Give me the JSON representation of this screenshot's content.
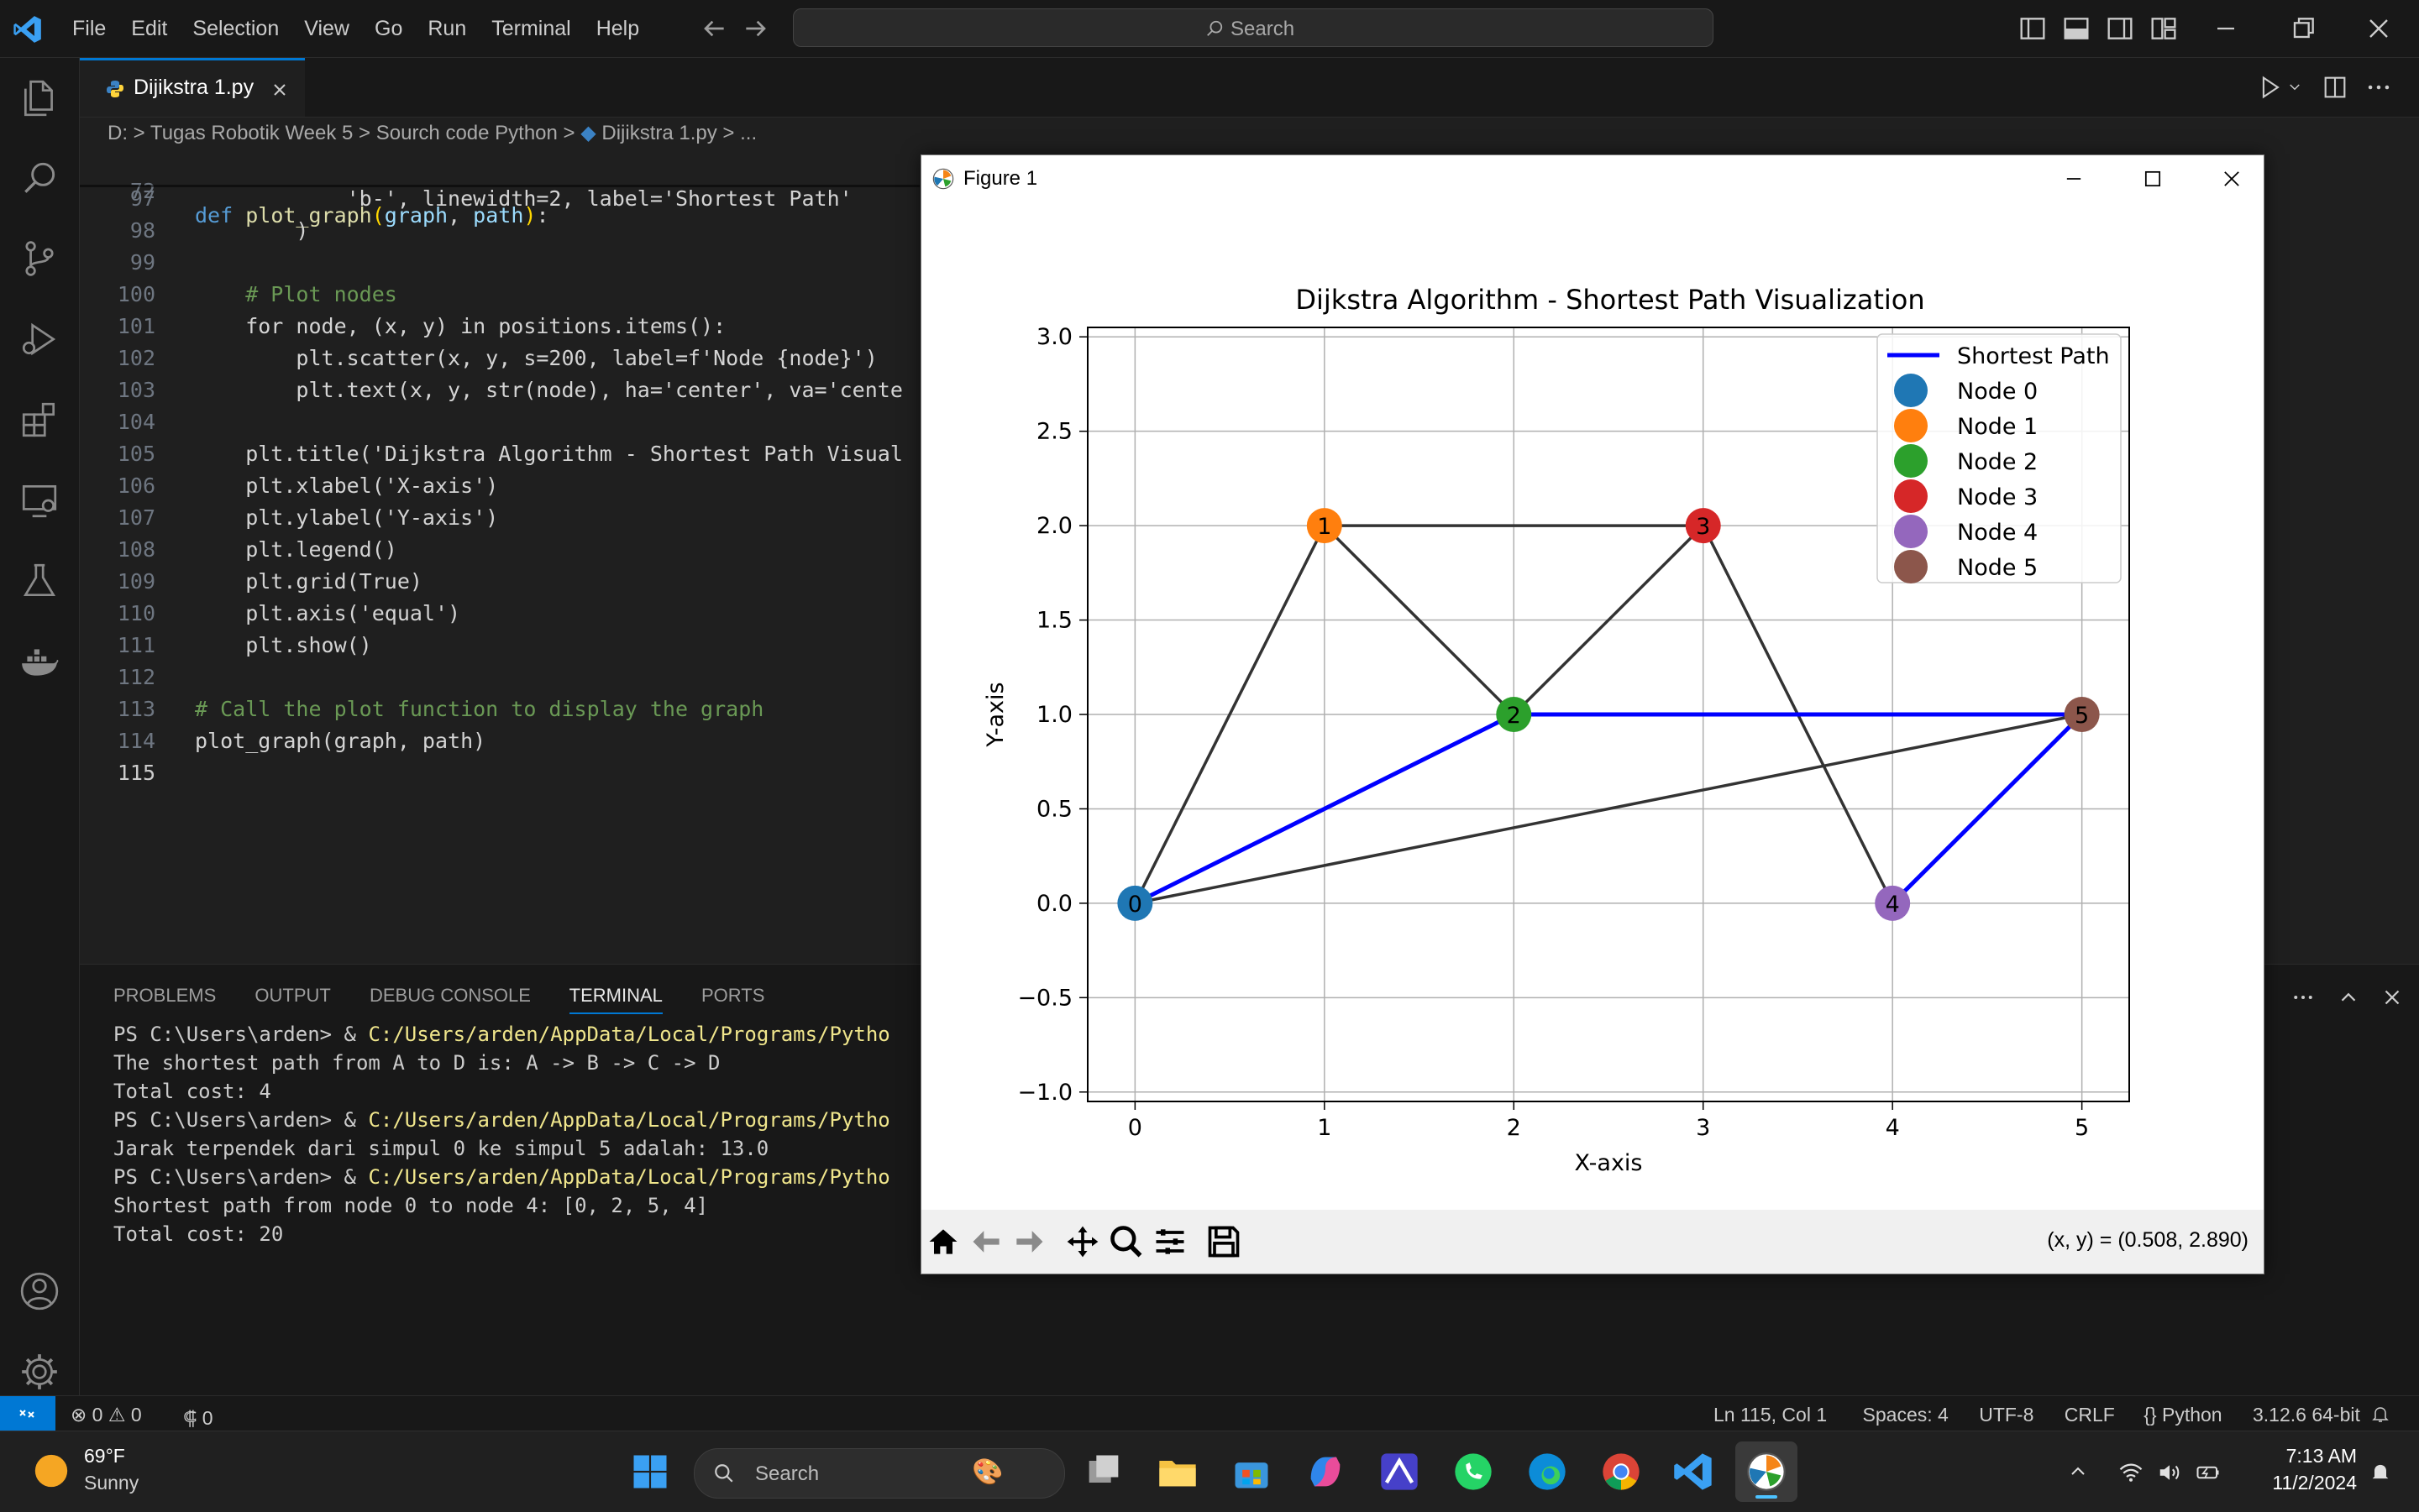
{
  "menu": [
    "File",
    "Edit",
    "Selection",
    "View",
    "Go",
    "Run",
    "Terminal",
    "Help"
  ],
  "search": {
    "label": "Search"
  },
  "tab": {
    "title": "Dijikstra 1.py"
  },
  "breadcrumb": [
    "D:",
    "Tugas Robotik Week 5",
    "Sourch code Python",
    "Dijikstra 1.py",
    "..."
  ],
  "code": {
    "sticky": {
      "num": "72",
      "text": "def plot_graph(graph, path):"
    },
    "lines": [
      {
        "num": "97",
        "text": "            'b-', linewidth=2, label='Shortest Path'"
      },
      {
        "num": "98",
        "text": "        )"
      },
      {
        "num": "99",
        "text": ""
      },
      {
        "num": "100",
        "text": "    # Plot nodes"
      },
      {
        "num": "101",
        "text": "    for node, (x, y) in positions.items():"
      },
      {
        "num": "102",
        "text": "        plt.scatter(x, y, s=200, label=f'Node {node}')"
      },
      {
        "num": "103",
        "text": "        plt.text(x, y, str(node), ha='center', va='cente"
      },
      {
        "num": "104",
        "text": ""
      },
      {
        "num": "105",
        "text": "    plt.title('Dijkstra Algorithm - Shortest Path Visual"
      },
      {
        "num": "106",
        "text": "    plt.xlabel('X-axis')"
      },
      {
        "num": "107",
        "text": "    plt.ylabel('Y-axis')"
      },
      {
        "num": "108",
        "text": "    plt.legend()"
      },
      {
        "num": "109",
        "text": "    plt.grid(True)"
      },
      {
        "num": "110",
        "text": "    plt.axis('equal')"
      },
      {
        "num": "111",
        "text": "    plt.show()"
      },
      {
        "num": "112",
        "text": ""
      },
      {
        "num": "113",
        "text": "# Call the plot function to display the graph"
      },
      {
        "num": "114",
        "text": "plot_graph(graph, path)"
      },
      {
        "num": "115",
        "text": ""
      }
    ]
  },
  "panel": {
    "tabs": [
      "PROBLEMS",
      "OUTPUT",
      "DEBUG CONSOLE",
      "TERMINAL",
      "PORTS"
    ],
    "active_tab": "TERMINAL"
  },
  "terminal": [
    {
      "prompt": "PS C:\\Users\\arden> & ",
      "cmd": "C:/Users/arden/AppData/Local/Programs/Pytho"
    },
    {
      "text": "The shortest path from A to D is: A -> B -> C -> D"
    },
    {
      "text": "Total cost: 4"
    },
    {
      "prompt": "PS C:\\Users\\arden> & ",
      "cmd": "C:/Users/arden/AppData/Local/Programs/Pytho"
    },
    {
      "text": "Jarak terpendek dari simpul 0 ke simpul 5 adalah: 13.0"
    },
    {
      "prompt": "PS C:\\Users\\arden> & ",
      "cmd": "C:/Users/arden/AppData/Local/Programs/Pytho"
    },
    {
      "text": "Shortest path from node 0 to node 4: [0, 2, 5, 4]"
    },
    {
      "text": "Total cost: 20"
    }
  ],
  "status": {
    "errors": "0",
    "warnings": "0",
    "ports": "0",
    "position": "Ln 115, Col 1",
    "spaces": "Spaces: 4",
    "encoding": "UTF-8",
    "eol": "CRLF",
    "language": "Python",
    "interpreter": "3.12.6 64-bit"
  },
  "figure": {
    "window_title": "Figure 1",
    "coords": "(x, y) = (0.508, 2.890)"
  },
  "chart_data": {
    "type": "scatter",
    "title": "Dijkstra Algorithm - Shortest Path Visualization",
    "xlabel": "X-axis",
    "ylabel": "Y-axis",
    "xlim": [
      -0.25,
      5.25
    ],
    "ylim": [
      -1.05,
      3.05
    ],
    "xticks": [
      "0",
      "1",
      "2",
      "3",
      "4",
      "5"
    ],
    "yticks": [
      "−1.0",
      "−0.5",
      "0.0",
      "0.5",
      "1.0",
      "1.5",
      "2.0",
      "2.5",
      "3.0"
    ],
    "grid": true,
    "legend_position": "top-right",
    "nodes": [
      {
        "name": "Node 0",
        "label": "0",
        "x": 0,
        "y": 0,
        "color": "#1f77b4"
      },
      {
        "name": "Node 1",
        "label": "1",
        "x": 1,
        "y": 2,
        "color": "#ff7f0e"
      },
      {
        "name": "Node 2",
        "label": "2",
        "x": 2,
        "y": 1,
        "color": "#2ca02c"
      },
      {
        "name": "Node 3",
        "label": "3",
        "x": 3,
        "y": 2,
        "color": "#d62728"
      },
      {
        "name": "Node 4",
        "label": "4",
        "x": 4,
        "y": 0,
        "color": "#9467bd"
      },
      {
        "name": "Node 5",
        "label": "5",
        "x": 5,
        "y": 1,
        "color": "#8c564b"
      }
    ],
    "edges": [
      [
        0,
        1
      ],
      [
        1,
        2
      ],
      [
        1,
        3
      ],
      [
        2,
        3
      ],
      [
        3,
        4
      ],
      [
        0,
        5
      ],
      [
        0,
        2
      ],
      [
        2,
        5
      ],
      [
        5,
        4
      ]
    ],
    "shortest_path": {
      "name": "Shortest Path",
      "nodes": [
        0,
        2,
        5,
        4
      ],
      "color": "#0000ff"
    }
  },
  "weather": {
    "temp": "69°F",
    "cond": "Sunny"
  },
  "taskbar_search": "Search",
  "clock": {
    "time": "7:13 AM",
    "date": "11/2/2024"
  },
  "colors": {
    "accent": "#0078d4",
    "bg": "#1f1f1f"
  }
}
